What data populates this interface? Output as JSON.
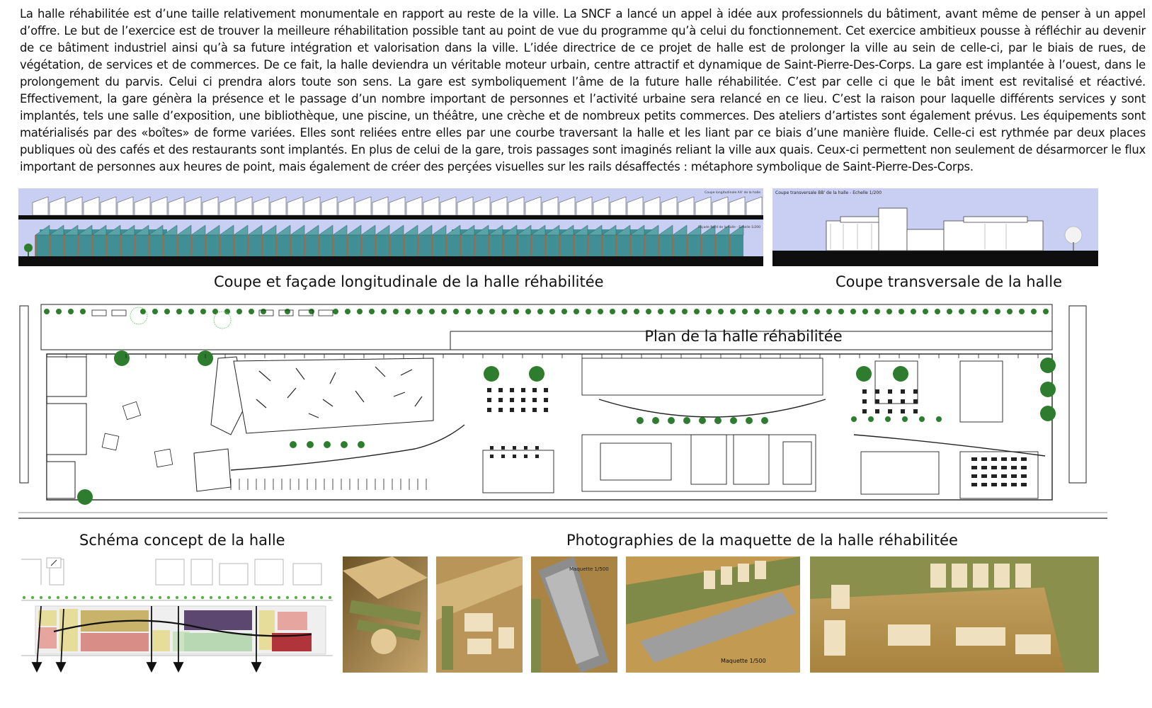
{
  "intro_text": "La halle réhabilitée est d’une taille relativement monumentale en rapport au reste de la ville. La SNCF a lancé un appel à idée aux professionnels du bâtiment, avant même de penser à un appel d’offre. Le but de l’exercice est de trouver la meilleure réhabilitation possible tant au point de vue du programme qu’à celui du fonctionnement. Cet exercice ambitieux pousse à réfléchir au devenir de ce bâtiment industriel ainsi qu’à sa future intégration et valorisation dans la ville. L’idée directrice de ce projet de halle est de prolonger la ville au sein de celle-ci, par le biais de rues, de végétation, de services et de commerces. De ce fait, la halle deviendra un véritable moteur urbain, centre attractif et dynamique de Saint-Pierre-Des-Corps. La gare est implantée à l’ouest, dans le prolongement du parvis. Celui ci prendra alors toute son sens. La gare est symboliquement l’âme de la future halle réhabilitée. C’est par celle ci que le bât iment est revitalisé et réactivé. Effectivement, la gare génèra la présence et le passage d’un nombre important de personnes et l’activité urbaine sera relancé en ce lieu. C’est la raison pour laquelle différents services y sont implantés, tels une salle d’exposition, une bibliothèque, une piscine, un théâtre, une crèche et de nombreux petits commerces. Des ateliers d’artistes sont également prévus. Les équipements sont matérialisés par des «boîtes» de forme variées. Elles sont reliées entre elles par une courbe traversant la halle et les liant par ce biais d’une manière fluide. Celle-ci est rythmée par deux places publiques où des cafés et des restaurants sont implantés. En plus de celui de la gare, trois passages sont imaginés reliant la ville aux quais. Ceux-ci permettent non seulement de désarmorcer le flux important de personnes aux heures de point, mais également de créer des perçées visuelles sur les rails désaffectés : métaphore symbolique de Saint-Pierre-Des-Corps.",
  "captions": {
    "longitudinal": "Coupe et façade longitudinale de la halle réhabilitée",
    "transversal": "Coupe transversale de la halle",
    "plan": "Plan de la halle réhabilitée",
    "concept": "Schéma concept de la halle",
    "photos": "Photographies de la maquette de la halle réhabilitée"
  },
  "drawing_labels": {
    "longitudinal_section": "Coupe longitudinale AA' de la halle",
    "north_facade": "Façade Nord de la halle - Echelle 1/200",
    "transversal_section": "Coupe transversale BB' de la halle - Echelle 1/200",
    "maquette_scale": "Maquette 1/500"
  },
  "colors": {
    "sky_blue": "#c9cff2",
    "facade_teal": "#3f8f95",
    "facade_roof": "#b8613a",
    "ground_black": "#0e0e0e",
    "tree_green": "#2e7d2e",
    "concept_yellow": "#e7dd9a",
    "concept_purple": "#5b4770",
    "concept_red": "#b0343a",
    "concept_pink": "#e7a5a0",
    "concept_green": "#c9e3c3",
    "model_tan": "#c8a66c",
    "model_dark": "#6b5327"
  },
  "icons": {
    "north": "north-arrow-icon",
    "flow_arrow": "arrow-down-icon"
  }
}
